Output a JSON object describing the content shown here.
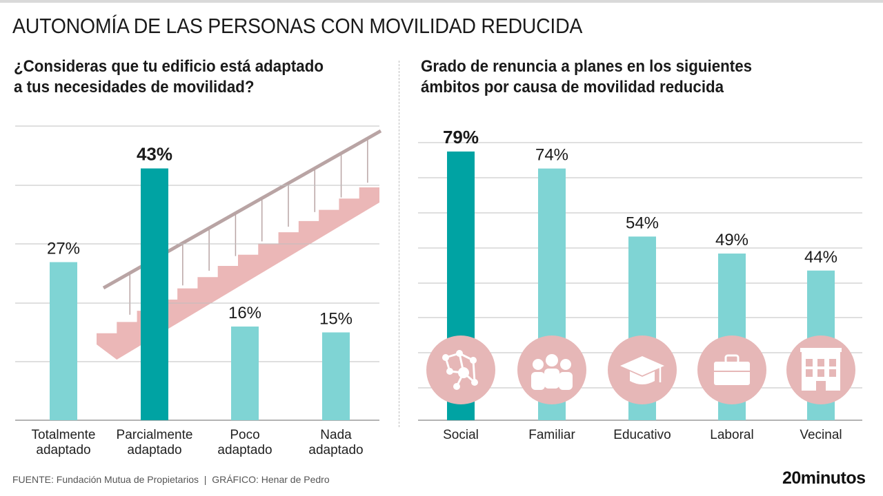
{
  "title": "AUTONOMÍA DE LAS PERSONAS CON MOVILIDAD REDUCIDA",
  "colors": {
    "highlight": "#00a3a3",
    "bar": "#7fd4d4",
    "icon": "#e6b7b7",
    "stair": "#e8aaaa",
    "grid": "#bfbfbf"
  },
  "icons": [
    "molecule-network-icon",
    "family-icon",
    "graduation-cap-icon",
    "briefcase-icon",
    "building-icon"
  ],
  "chart_data": [
    {
      "type": "bar",
      "title": "¿Consideras que tu edificio está adaptado\na tus necesidades de movilidad?",
      "categories": [
        "Totalmente\nadaptado",
        "Parcialmente\nadaptado",
        "Poco\nadaptado",
        "Nada\nadaptado"
      ],
      "values": [
        27,
        43,
        16,
        15
      ],
      "labels": [
        "27%",
        "43%",
        "16%",
        "15%"
      ],
      "highlight_index": 1,
      "ylim": [
        0,
        50
      ],
      "grid": true
    },
    {
      "type": "bar",
      "title": "Grado de renuncia a planes en los siguientes\námbitos por causa de movilidad reducida",
      "categories": [
        "Social",
        "Familiar",
        "Educativo",
        "Laboral",
        "Vecinal"
      ],
      "values": [
        79,
        74,
        54,
        49,
        44
      ],
      "labels": [
        "79%",
        "74%",
        "54%",
        "49%",
        "44%"
      ],
      "highlight_index": 0,
      "ylim": [
        0,
        80
      ],
      "grid": true
    }
  ],
  "footer": {
    "source_label": "FUENTE:",
    "source": "Fundación Mutua de Propietarios",
    "separator": "|",
    "graphic_label": "GRÁFICO:",
    "graphic": "Henar de Pedro",
    "logo": "20minutos"
  }
}
